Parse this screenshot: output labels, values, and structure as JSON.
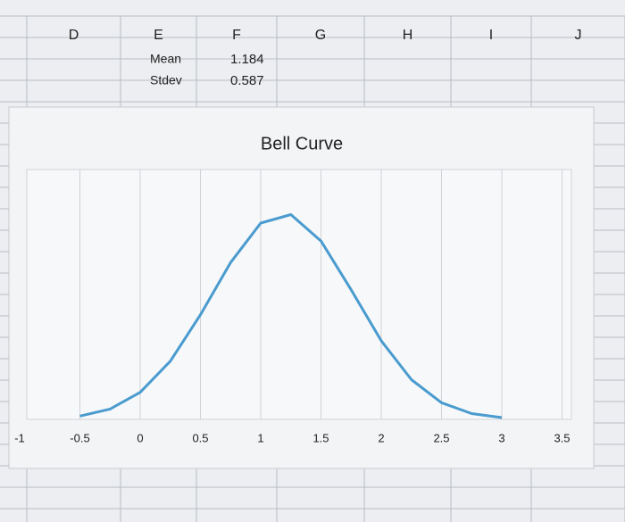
{
  "sheet": {
    "columns": [
      "D",
      "E",
      "F",
      "G",
      "H",
      "I",
      "J"
    ],
    "rows": [
      [
        "Mean",
        1.184
      ],
      [
        "Stdev",
        0.587
      ]
    ]
  },
  "chart_data": {
    "type": "line",
    "title": "Bell Curve",
    "x": [
      -0.5,
      -0.25,
      0,
      0.25,
      0.5,
      0.75,
      1,
      1.25,
      1.5,
      1.75,
      2,
      2.25,
      2.5,
      2.75,
      3
    ],
    "values": [
      0.011,
      0.034,
      0.089,
      0.192,
      0.345,
      0.517,
      0.647,
      0.675,
      0.588,
      0.427,
      0.259,
      0.131,
      0.055,
      0.019,
      0.006
    ],
    "color": "#4a9bcf",
    "xlim": [
      -1,
      3.5
    ],
    "xticks": [
      -1,
      -0.5,
      0,
      0.5,
      1,
      1.5,
      2,
      2.5,
      3,
      3.5
    ],
    "ylim": [
      0,
      0.75
    ],
    "grid": true
  }
}
